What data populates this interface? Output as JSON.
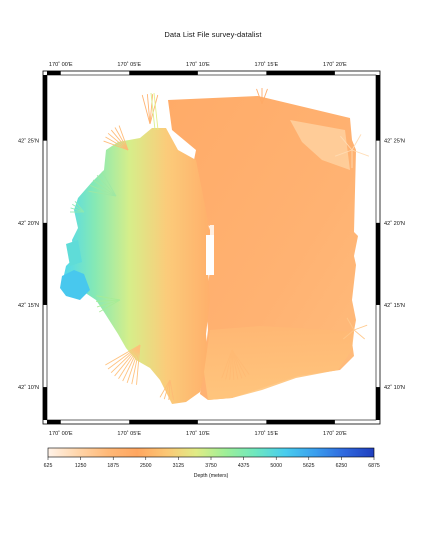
{
  "title": "Data List File survey-datalist",
  "map": {
    "lon_range": [
      169.9833,
      170.3833
    ],
    "lat_range": [
      42.1333,
      42.4833
    ],
    "lon_ticks": [
      {
        "value": 170.0,
        "label": "170˚ 00'E"
      },
      {
        "value": 170.0833,
        "label": "170˚ 05'E"
      },
      {
        "value": 170.1667,
        "label": "170˚ 10'E"
      },
      {
        "value": 170.25,
        "label": "170˚ 15'E"
      },
      {
        "value": 170.3333,
        "label": "170˚ 20'E"
      }
    ],
    "lat_ticks": [
      {
        "value": 42.1667,
        "label": "42˚ 10'N"
      },
      {
        "value": 42.25,
        "label": "42˚ 15'N"
      },
      {
        "value": 42.3333,
        "label": "42˚ 20'N"
      },
      {
        "value": 42.4167,
        "label": "42˚ 25'N"
      }
    ]
  },
  "colorbar": {
    "label": "Depth (meters)",
    "ticks": [
      "625",
      "1250",
      "1875",
      "2500",
      "3125",
      "3750",
      "4375",
      "5000",
      "5625",
      "6250",
      "6875"
    ],
    "range": [
      625,
      6875
    ],
    "colors": [
      "#fff2e8",
      "#ffd6ab",
      "#ffb978",
      "#ffa660",
      "#fcc775",
      "#e0ec86",
      "#9eef98",
      "#6ee7bf",
      "#48cdee",
      "#3a9fee",
      "#2f68de",
      "#1f3fbe"
    ]
  }
}
